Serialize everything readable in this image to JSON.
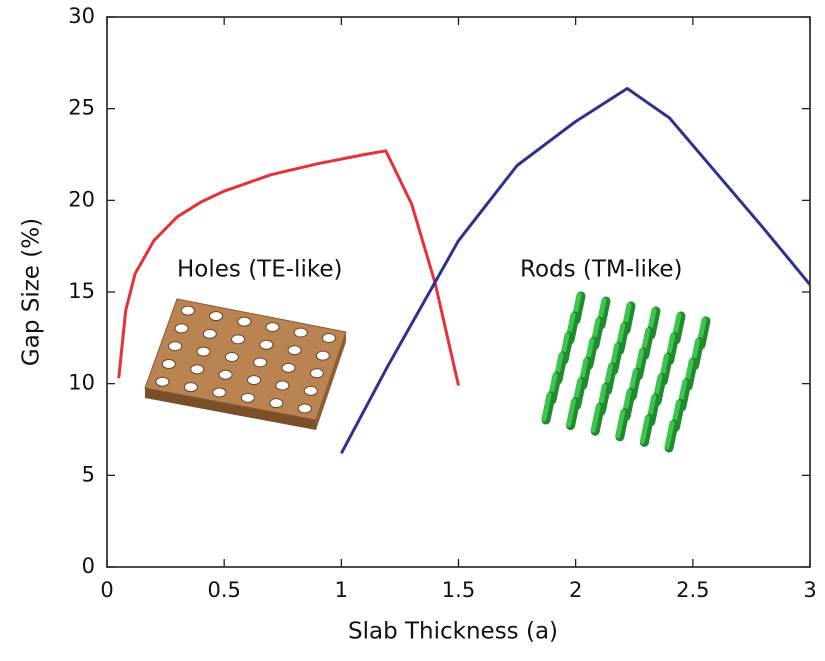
{
  "chart_data": {
    "type": "line",
    "x_label": "Slab Thickness (a)",
    "y_label": "Gap Size (%)",
    "xlim": [
      0,
      3
    ],
    "xticks": [
      0,
      0.5,
      1,
      1.5,
      2,
      2.5,
      3
    ],
    "ylim": [
      0,
      30
    ],
    "yticks": [
      0,
      5,
      10,
      15,
      20,
      25,
      30
    ],
    "series": [
      {
        "name": "Holes (TE-like)",
        "color": "#e8303a",
        "x": [
          0.05,
          0.08,
          0.12,
          0.2,
          0.3,
          0.4,
          0.5,
          0.7,
          0.9,
          1.1,
          1.19,
          1.3,
          1.4,
          1.5
        ],
        "values": [
          10.3,
          14,
          16,
          17.8,
          19.1,
          19.9,
          20.5,
          21.4,
          22.0,
          22.5,
          22.7,
          19.8,
          15.5,
          9.9
        ]
      },
      {
        "name": "Rods (TM-like)",
        "color": "#2e3192",
        "x": [
          1.0,
          1.2,
          1.5,
          1.75,
          2.0,
          2.22,
          2.4,
          2.6,
          2.8,
          3.0
        ],
        "values": [
          6.2,
          11,
          17.8,
          21.9,
          24.3,
          26.1,
          24.5,
          21.5,
          18.5,
          15.4
        ]
      }
    ]
  }
}
